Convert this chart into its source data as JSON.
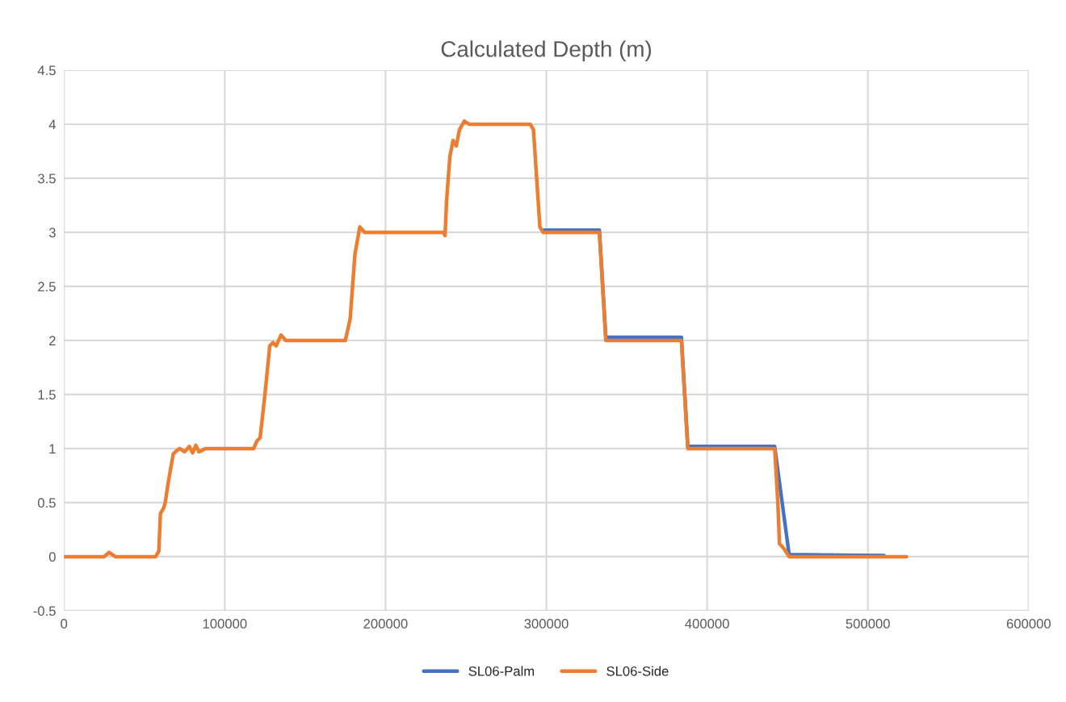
{
  "chart_data": {
    "type": "line",
    "title": "Calculated Depth (m)",
    "series": [
      {
        "name": "SL06-Palm",
        "color": "#4472c4",
        "x": [
          298000,
          333000,
          337000,
          384000,
          388000,
          442000,
          451000,
          510000
        ],
        "values": [
          3.02,
          3.02,
          2.03,
          2.03,
          1.02,
          1.02,
          0.02,
          0.01
        ]
      },
      {
        "name": "SL06-Side",
        "color": "#ed7d31",
        "x": [
          0,
          25000,
          28000,
          32000,
          57000,
          59000,
          60000,
          62000,
          63000,
          65000,
          68000,
          70000,
          72000,
          75000,
          78000,
          80000,
          82000,
          84000,
          88000,
          95000,
          118000,
          120000,
          122000,
          125000,
          128000,
          130000,
          132000,
          135000,
          138000,
          175000,
          178000,
          181000,
          184000,
          187000,
          236000,
          237000,
          238000,
          240000,
          242000,
          244000,
          246000,
          249000,
          252000,
          290000,
          292000,
          294000,
          296000,
          298000,
          333000,
          335000,
          337000,
          384000,
          386000,
          388000,
          442000,
          444000,
          445000,
          448000,
          451000,
          500000,
          524000
        ],
        "values": [
          0,
          0,
          0.04,
          0,
          0,
          0.05,
          0.4,
          0.45,
          0.5,
          0.7,
          0.95,
          0.98,
          1.0,
          0.97,
          1.02,
          0.96,
          1.03,
          0.97,
          1.0,
          1.0,
          1.0,
          1.07,
          1.1,
          1.5,
          1.95,
          1.98,
          1.95,
          2.05,
          2.0,
          2.0,
          2.2,
          2.8,
          3.05,
          3.0,
          3.0,
          2.97,
          3.3,
          3.7,
          3.85,
          3.8,
          3.95,
          4.03,
          4.0,
          4.0,
          3.95,
          3.5,
          3.05,
          3.0,
          3.0,
          2.5,
          2.0,
          2.0,
          1.5,
          1.0,
          1.0,
          0.5,
          0.12,
          0.07,
          0.0,
          0.0,
          0.0
        ]
      }
    ],
    "xlim": [
      0,
      600000
    ],
    "xticks": [
      0,
      100000,
      200000,
      300000,
      400000,
      500000,
      600000
    ],
    "ylim": [
      -0.5,
      4.5
    ],
    "yticks": [
      -0.5,
      0,
      0.5,
      1,
      1.5,
      2,
      2.5,
      3,
      3.5,
      4,
      4.5
    ],
    "grid": true,
    "legend": "bottom"
  }
}
